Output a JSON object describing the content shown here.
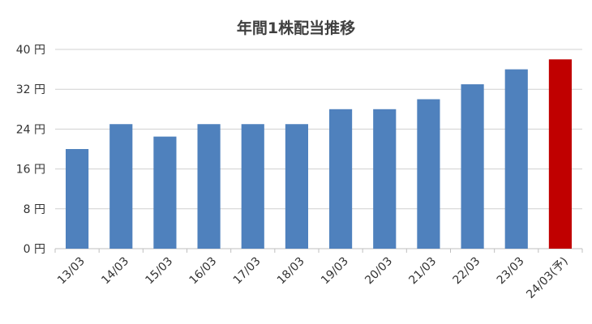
{
  "chart_data": {
    "type": "bar",
    "title": "年間1株配当推移",
    "xlabel": "",
    "ylabel": "",
    "categories": [
      "13/03",
      "14/03",
      "15/03",
      "16/03",
      "17/03",
      "18/03",
      "19/03",
      "20/03",
      "21/03",
      "22/03",
      "23/03",
      "24/03(予)"
    ],
    "values": [
      20,
      25,
      22.5,
      25,
      25,
      25,
      28,
      28,
      30,
      33,
      36,
      38
    ],
    "y_ticks": [
      "0 円",
      "8 円",
      "16 円",
      "24 円",
      "32 円",
      "40 円"
    ],
    "ylim": [
      0,
      40
    ],
    "grid": true,
    "legend": "none",
    "colors": {
      "actual": "#4f81bd",
      "forecast": "#c00000"
    },
    "forecast_index": 11
  }
}
